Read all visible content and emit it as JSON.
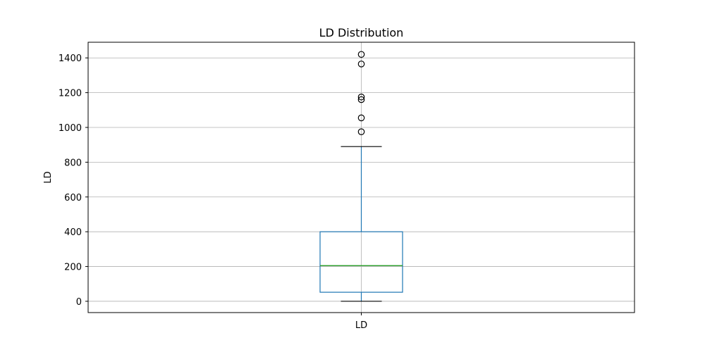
{
  "chart_data": {
    "type": "box",
    "title": "LD Distribution",
    "xlabel": "",
    "ylabel": "LD",
    "categories": [
      "LD"
    ],
    "ylim": [
      -65,
      1490
    ],
    "yticks": [
      0,
      200,
      400,
      600,
      800,
      1000,
      1200,
      1400
    ],
    "grid": true,
    "box": {
      "whisker_low": 0,
      "q1": 52,
      "median": 205,
      "q3": 400,
      "whisker_high": 890,
      "outliers": [
        975,
        1055,
        1160,
        1175,
        1365,
        1420
      ]
    },
    "colors": {
      "box": "#1f77b4",
      "median": "#2ca02c",
      "whisker_cap": "#000000",
      "grid": "#b0b0b0",
      "outlier": "#000000"
    }
  }
}
